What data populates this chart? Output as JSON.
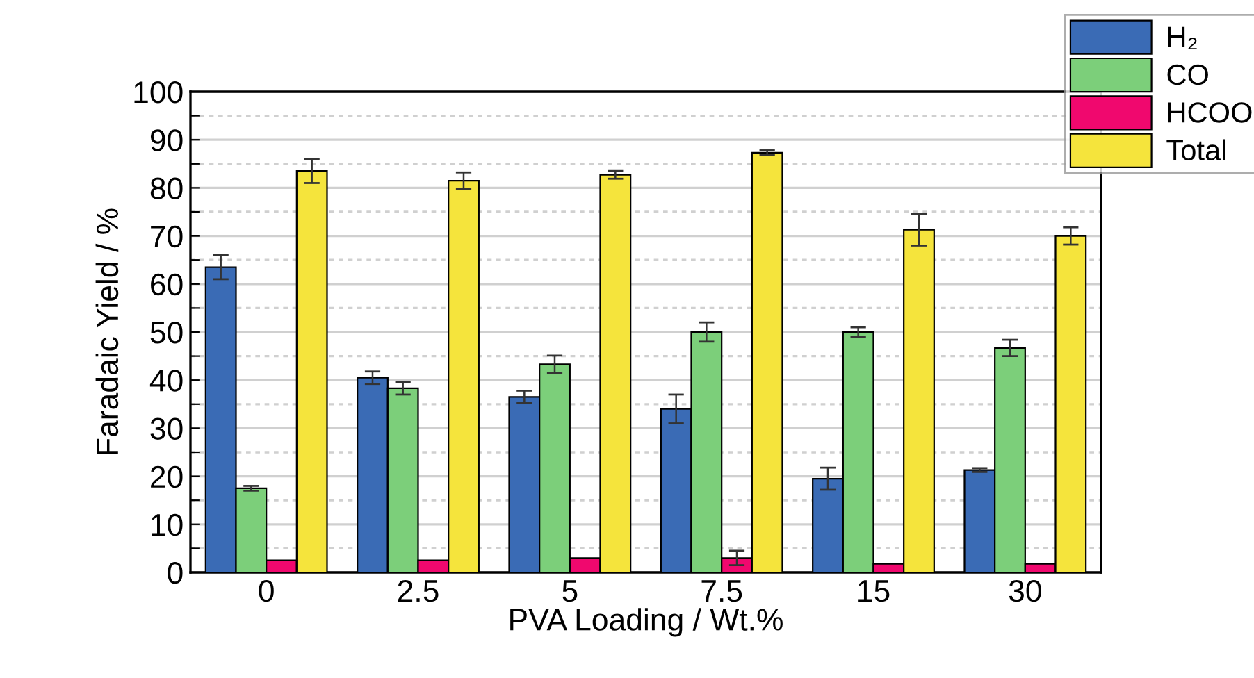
{
  "chart_data": {
    "type": "bar",
    "xlabel": "PVA Loading / Wt.%",
    "ylabel": "Faradaic Yield / %",
    "categories": [
      "0",
      "2.5",
      "5",
      "7.5",
      "15",
      "30"
    ],
    "series": [
      {
        "name": "H₂",
        "color": "#3a6bb5",
        "values": [
          63.5,
          40.5,
          36.5,
          34,
          19.5,
          21.3
        ],
        "errors": [
          2.5,
          1.3,
          1.3,
          3,
          2.3,
          0.4
        ]
      },
      {
        "name": "CO",
        "color": "#7ccf7a",
        "values": [
          17.5,
          38.3,
          43.3,
          50,
          50,
          46.7
        ],
        "errors": [
          0.5,
          1.3,
          1.8,
          2,
          1,
          1.7
        ]
      },
      {
        "name": "HCOO",
        "color": "#f0086e",
        "values": [
          2.5,
          2.5,
          3,
          3,
          1.8,
          1.8
        ],
        "errors": [
          null,
          null,
          null,
          1.5,
          null,
          null
        ]
      },
      {
        "name": "Total",
        "color": "#f5e43c",
        "values": [
          83.5,
          81.5,
          82.7,
          87.3,
          71.3,
          70
        ],
        "errors": [
          2.5,
          1.7,
          0.8,
          0.5,
          3.3,
          1.8
        ]
      }
    ],
    "ylim": [
      0,
      100
    ],
    "yticks": [
      0,
      {
        "value": 5,
        "label": null
      },
      10,
      {
        "value": 15,
        "label": null
      },
      20,
      {
        "value": 25,
        "label": null
      },
      30,
      {
        "value": 35,
        "label": null
      },
      40,
      {
        "value": 45,
        "label": null
      },
      50,
      {
        "value": 55,
        "label": null
      },
      60,
      {
        "value": 65,
        "label": null
      },
      70,
      {
        "value": 75,
        "label": null
      },
      80,
      {
        "value": 85,
        "label": null
      },
      90,
      {
        "value": 95,
        "label": null
      },
      100
    ],
    "grid": "y",
    "legend": "top right"
  }
}
